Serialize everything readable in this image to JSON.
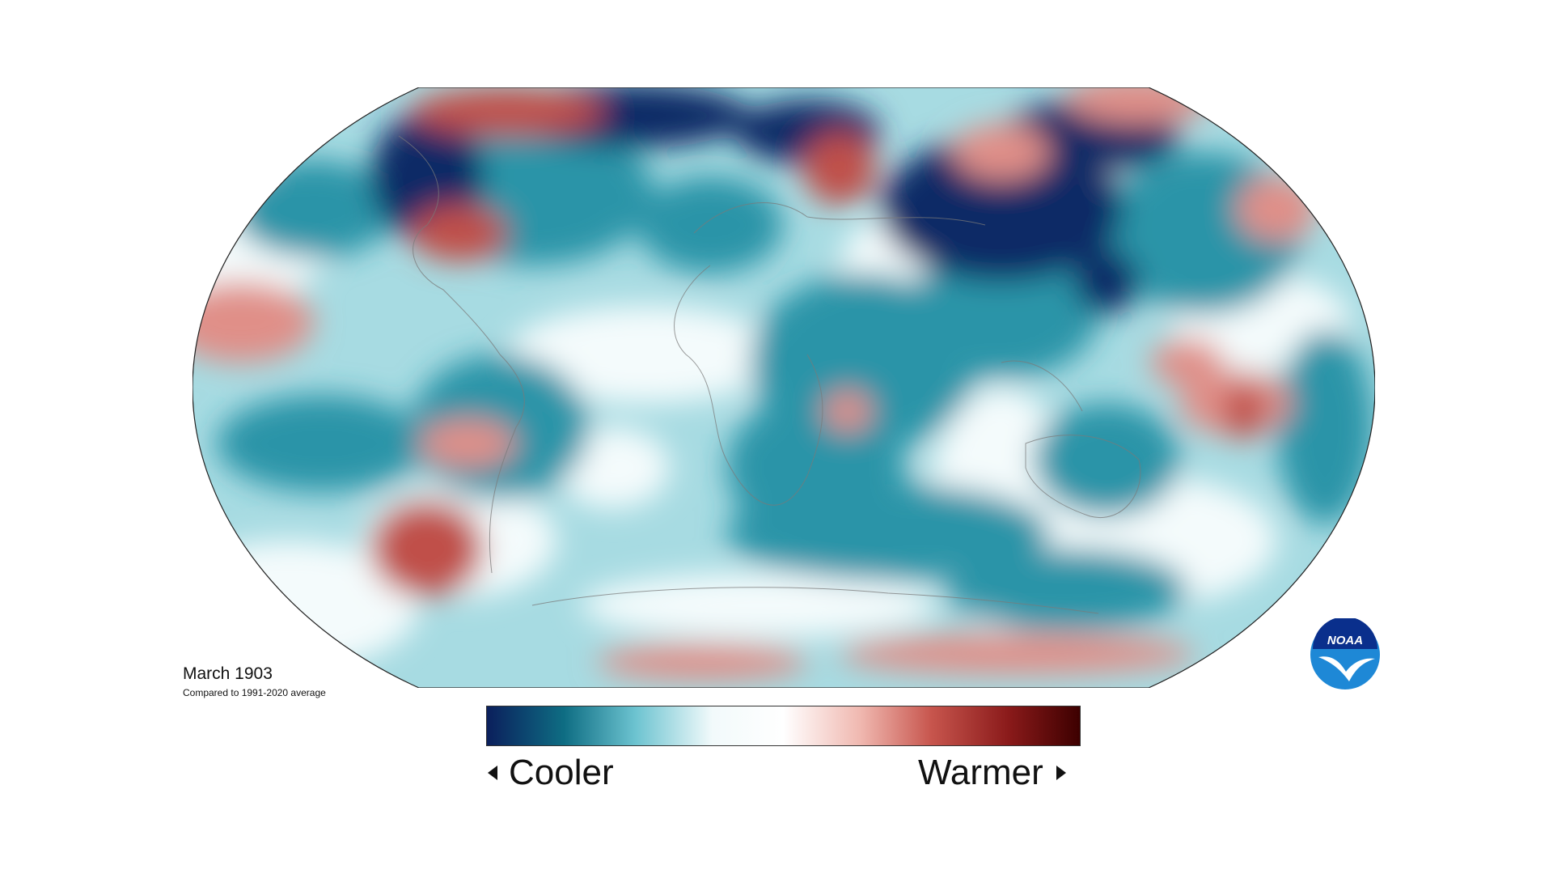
{
  "caption": {
    "title": "March 1903",
    "subtitle": "Compared to 1991-2020 average"
  },
  "colorbar": {
    "label_left": "Cooler",
    "label_right": "Warmer",
    "colors": [
      "#0b1f5c",
      "#0e6d83",
      "#6cc3d0",
      "#f2fafb",
      "#ffffff",
      "#f0b8b0",
      "#c7554d",
      "#8a1a1a",
      "#3d0000"
    ]
  },
  "map": {
    "ocean_base_color": "#a7dbe2",
    "cool_strong": "#0f2a66",
    "cool_mid": "#2c94a8",
    "neutral": "#f4fbfc",
    "warm_mid": "#e08f88",
    "warm_strong": "#c0504a",
    "coastline_color": "#7a7a7a"
  },
  "logo": {
    "text": "NOAA",
    "colors": [
      "#0a2f8c",
      "#1e88d6",
      "#ffffff"
    ]
  }
}
